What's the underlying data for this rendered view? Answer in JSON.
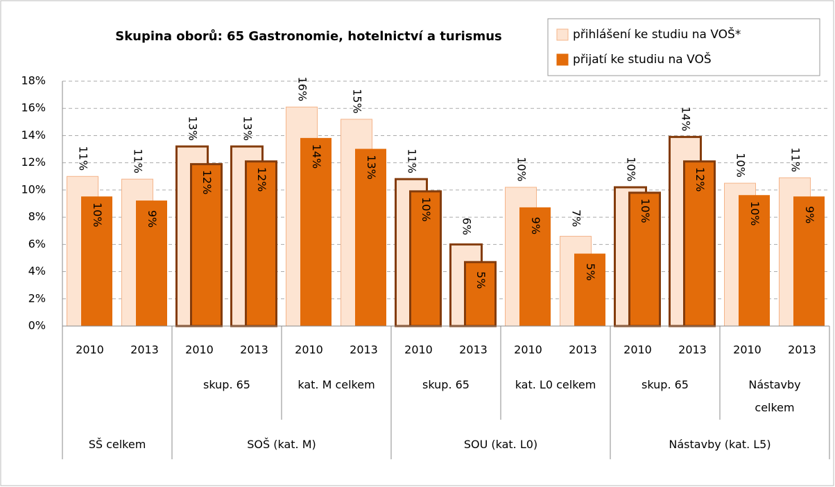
{
  "chart_data": {
    "type": "bar",
    "title": "Skupina oborů: 65 Gastronomie, hotelnictví a turismus",
    "categories": [
      "2010",
      "2013",
      "2010",
      "2013",
      "2010",
      "2013",
      "2010",
      "2013",
      "2010",
      "2013",
      "2010",
      "2013",
      "2010",
      "2013"
    ],
    "subgroups": [
      null,
      null,
      "skup. 65",
      null,
      "kat. M celkem",
      null,
      "skup. 65",
      null,
      "kat. L0 celkem",
      null,
      "skup. 65",
      null,
      "Nástavby\ncelkem",
      null
    ],
    "groups": [
      "SŠ celkem",
      null,
      "SOŠ (kat. M)",
      null,
      null,
      null,
      "SOU (kat. L0)",
      null,
      null,
      null,
      "Nástavby (kat. L5)",
      null,
      null,
      null
    ],
    "outlined": [
      false,
      false,
      true,
      true,
      false,
      false,
      true,
      true,
      false,
      false,
      true,
      true,
      false,
      false
    ],
    "outline_color": "#843c0c",
    "series": [
      {
        "name": "přihlášení ke studiu na VOŠ*",
        "color": "#fde4d2",
        "edge": "#f4b48a",
        "values": [
          11.0,
          10.8,
          13.2,
          13.2,
          16.1,
          15.2,
          10.8,
          6.0,
          10.2,
          6.6,
          10.2,
          13.9,
          10.5,
          10.9
        ],
        "value_labels": [
          "11%",
          "11%",
          "13%",
          "13%",
          "16%",
          "15%",
          "11%",
          "6%",
          "10%",
          "7%",
          "10%",
          "14%",
          "10%",
          "11%"
        ]
      },
      {
        "name": "přijatí ke studiu na VOŠ",
        "color": "#e36c0a",
        "edge": "#e36c0a",
        "values": [
          9.5,
          9.2,
          11.9,
          12.1,
          13.8,
          13.0,
          9.9,
          4.7,
          8.7,
          5.3,
          9.8,
          12.1,
          9.6,
          9.5
        ],
        "value_labels": [
          "10%",
          "9%",
          "12%",
          "12%",
          "14%",
          "13%",
          "10%",
          "5%",
          "9%",
          "5%",
          "10%",
          "12%",
          "10%",
          "9%"
        ]
      }
    ],
    "ylim": [
      0,
      18
    ],
    "yticks": [
      {
        "value": 0,
        "label": "0%"
      },
      {
        "value": 2,
        "label": "2%"
      },
      {
        "value": 4,
        "label": "4%"
      },
      {
        "value": 6,
        "label": "6%"
      },
      {
        "value": 8,
        "label": "8%"
      },
      {
        "value": 10,
        "label": "10%"
      },
      {
        "value": 12,
        "label": "12%"
      },
      {
        "value": 14,
        "label": "14%"
      },
      {
        "value": 16,
        "label": "16%"
      },
      {
        "value": 18,
        "label": "18%"
      }
    ],
    "grid": true,
    "legend": "top-right"
  }
}
